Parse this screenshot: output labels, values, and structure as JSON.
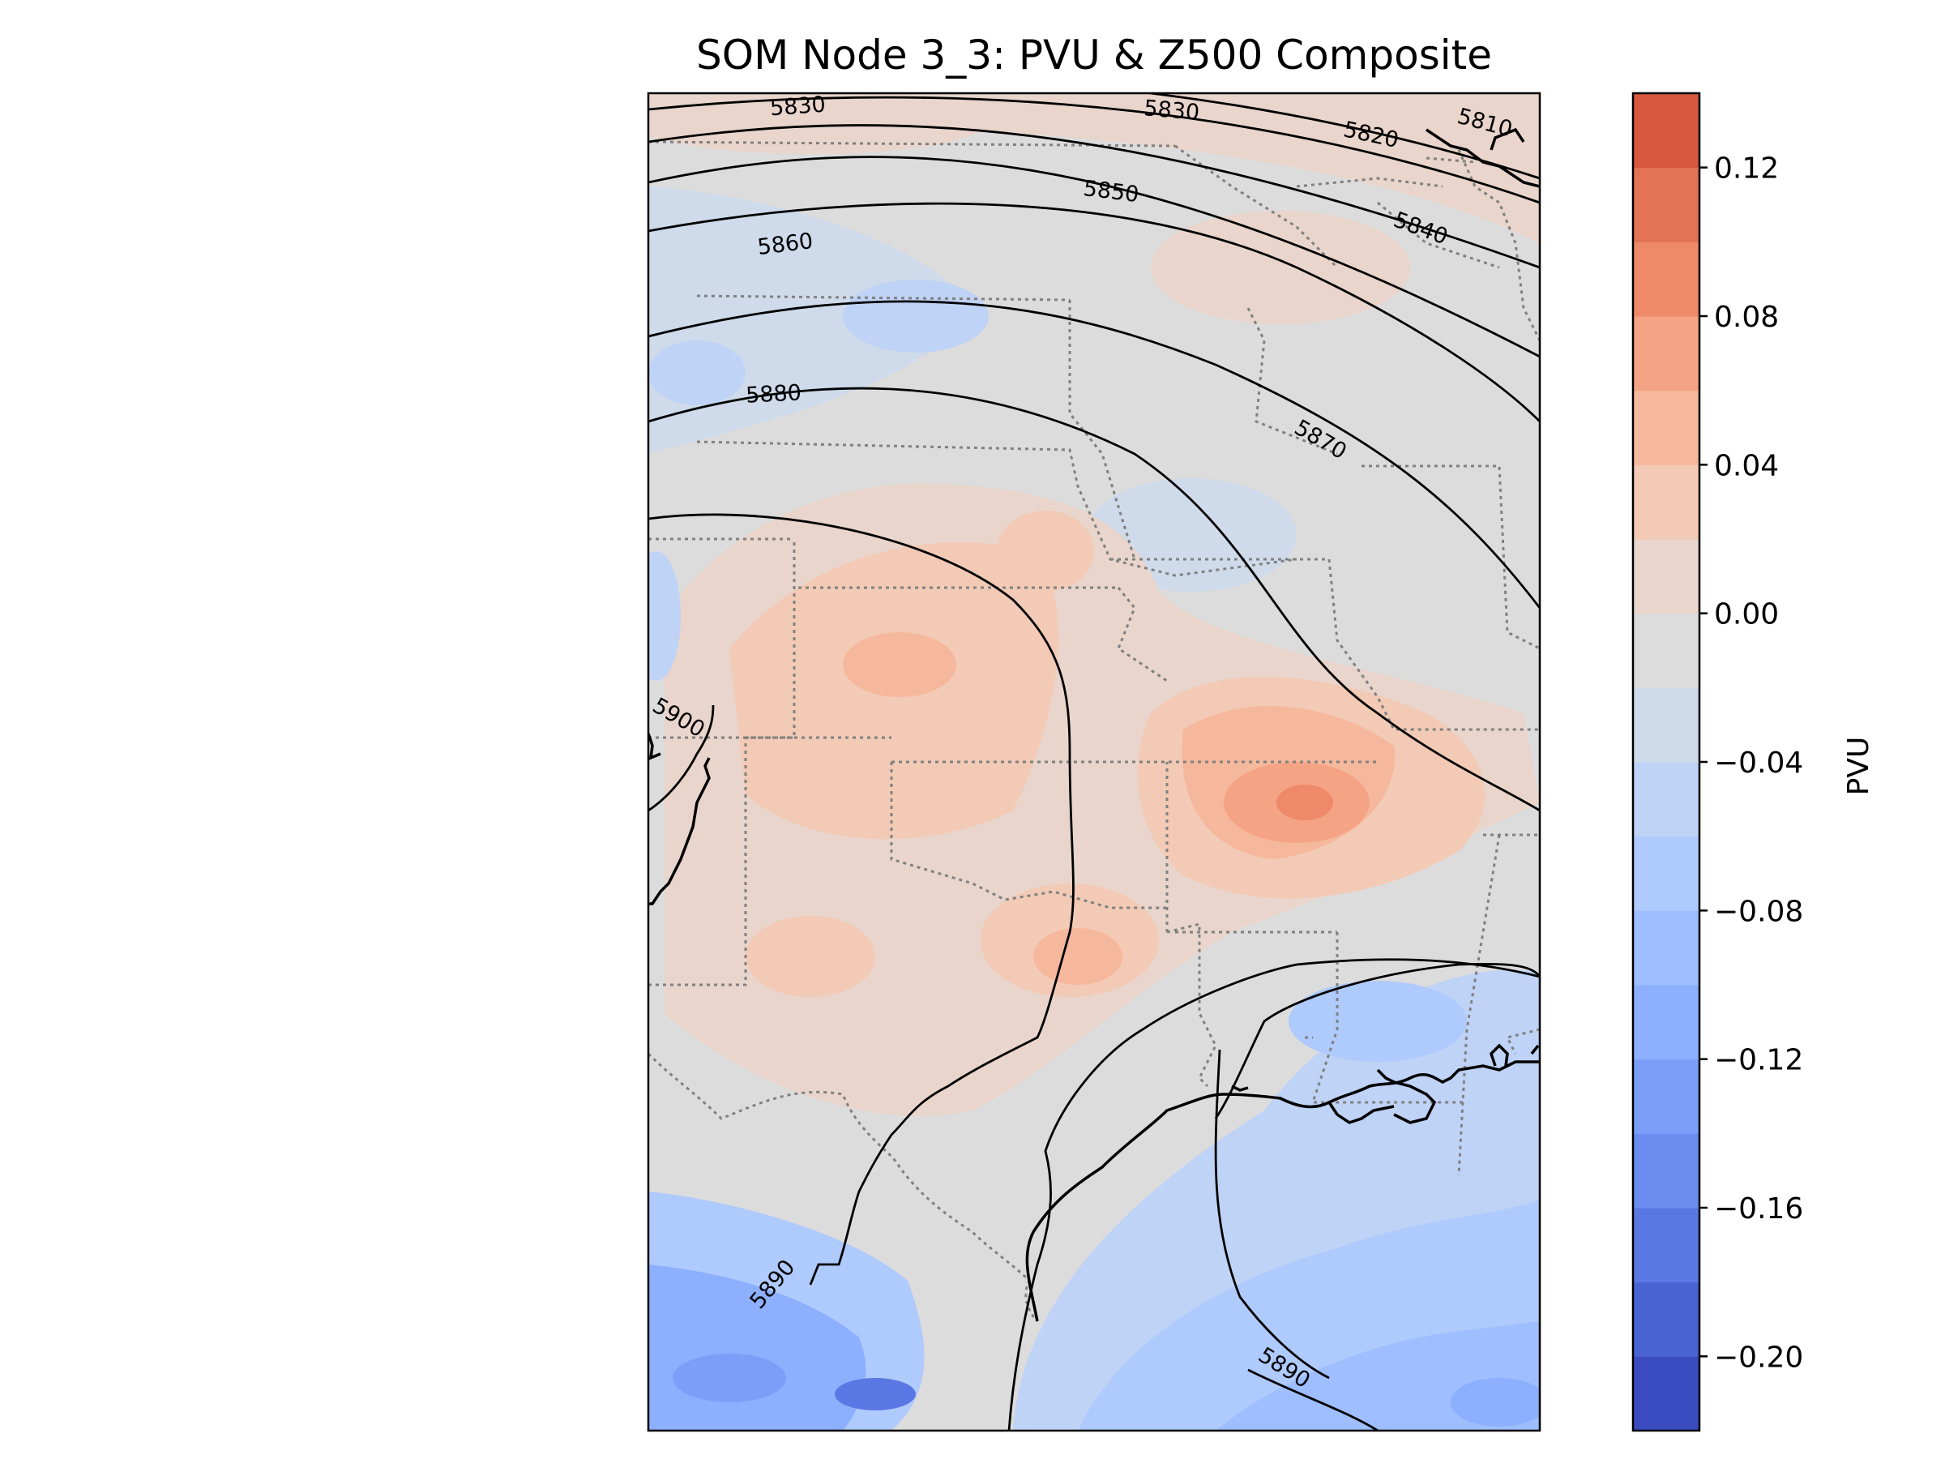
{
  "title": "SOM Node 3_3: PVU & Z500 Composite",
  "colorbar": {
    "label": "PVU",
    "min": -0.22,
    "max": 0.14,
    "step": 0.02,
    "ticks": [
      {
        "value": 0.12,
        "label": "0.12"
      },
      {
        "value": 0.08,
        "label": "0.08"
      },
      {
        "value": 0.04,
        "label": "0.04"
      },
      {
        "value": 0.0,
        "label": "0.00"
      },
      {
        "value": -0.04,
        "label": "−0.04"
      },
      {
        "value": -0.08,
        "label": "−0.08"
      },
      {
        "value": -0.12,
        "label": "−0.12"
      },
      {
        "value": -0.16,
        "label": "−0.16"
      },
      {
        "value": -0.2,
        "label": "−0.20"
      }
    ],
    "colors": [
      "#3a4cc0",
      "#4a63d3",
      "#5a78e4",
      "#6b8df0",
      "#7b9ff9",
      "#8caffe",
      "#9ebeff",
      "#afcafc",
      "#bfd3f6",
      "#cfdaea",
      "#dddcdc",
      "#e9d5cb",
      "#f2cab5",
      "#f6b89c",
      "#f4a384",
      "#ee8a6a",
      "#e47254",
      "#d7583f"
    ]
  },
  "contour_labels": [
    "5830",
    "5830",
    "5820",
    "5810",
    "5850",
    "5840",
    "5860",
    "5880",
    "5870",
    "5900",
    "5890",
    "5890"
  ],
  "colors": {
    "contour": "#000000",
    "borders": "#808080",
    "coast": "#000000"
  }
}
